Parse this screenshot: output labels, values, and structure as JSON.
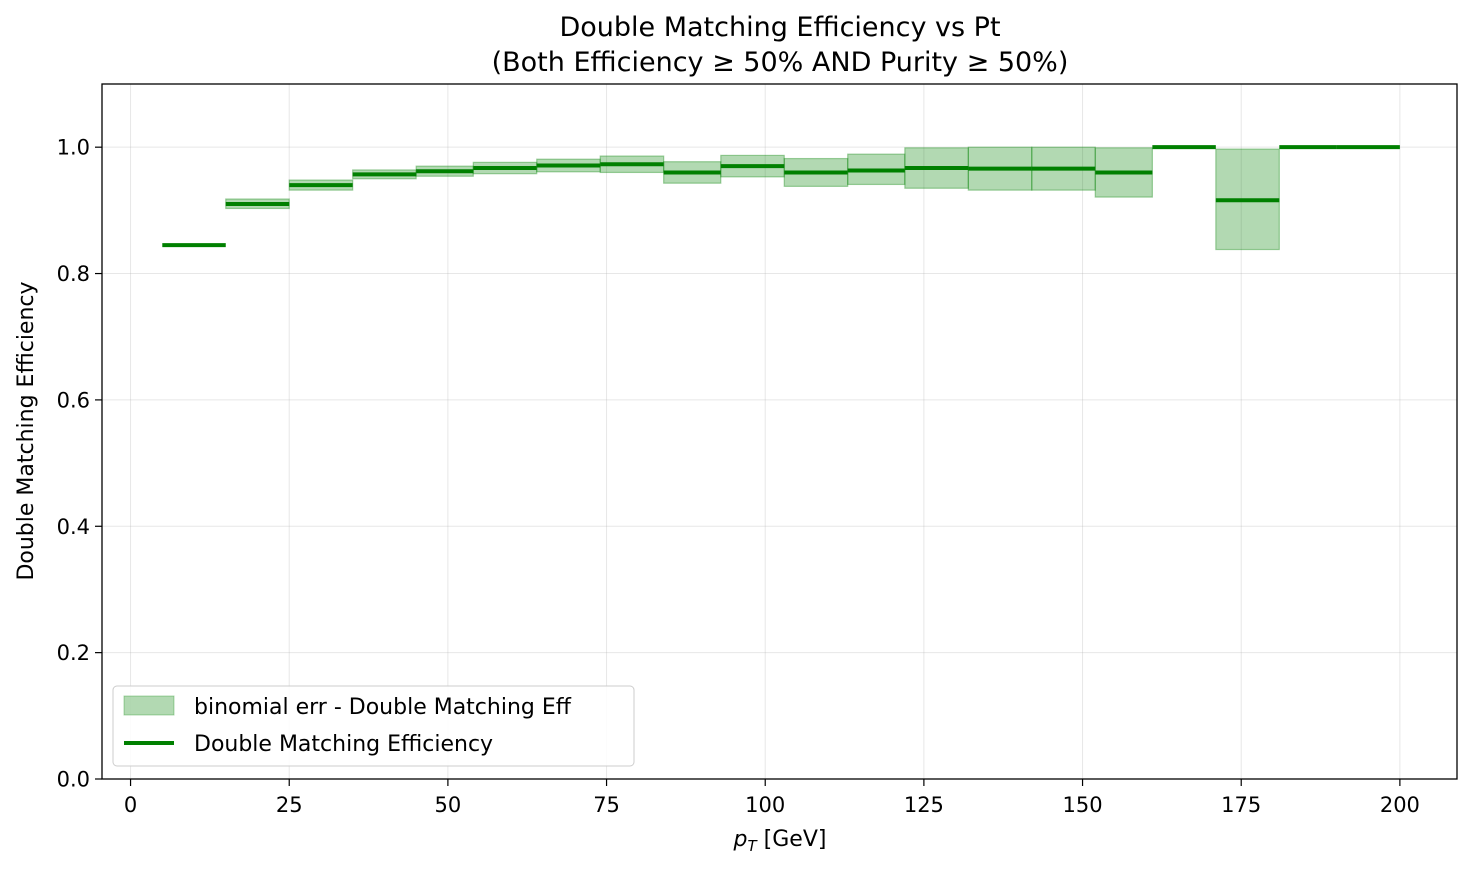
{
  "chart_data": {
    "type": "step",
    "title_lines": [
      "Double Matching Efficiency vs Pt",
      "(Both Efficiency ≥ 50% AND Purity ≥ 50%)"
    ],
    "xlabel_italic": "p",
    "xlabel_sub": "T",
    "xlabel_rest": " [GeV]",
    "ylabel": "Double Matching Efficiency",
    "xlim": [
      -4.5,
      209
    ],
    "ylim": [
      0.0,
      1.1
    ],
    "xticks": [
      0,
      25,
      50,
      75,
      100,
      125,
      150,
      175,
      200
    ],
    "yticks": [
      0.0,
      0.2,
      0.4,
      0.6,
      0.8,
      1.0
    ],
    "ytick_labels": [
      "0.0",
      "0.2",
      "0.4",
      "0.6",
      "0.8",
      "1.0"
    ],
    "grid": true,
    "legend_position": "lower-left",
    "line_color": "#008000",
    "band_color": "#008000",
    "series": [
      {
        "name": "Double Matching Efficiency",
        "bins": [
          {
            "x0": 5,
            "x1": 15,
            "y": 0.845
          },
          {
            "x0": 15,
            "x1": 25,
            "y": 0.91
          },
          {
            "x0": 25,
            "x1": 35,
            "y": 0.94
          },
          {
            "x0": 35,
            "x1": 45,
            "y": 0.957
          },
          {
            "x0": 45,
            "x1": 54,
            "y": 0.962
          },
          {
            "x0": 54,
            "x1": 64,
            "y": 0.967
          },
          {
            "x0": 64,
            "x1": 74,
            "y": 0.971
          },
          {
            "x0": 74,
            "x1": 84,
            "y": 0.973
          },
          {
            "x0": 84,
            "x1": 93,
            "y": 0.96
          },
          {
            "x0": 93,
            "x1": 103,
            "y": 0.97
          },
          {
            "x0": 103,
            "x1": 113,
            "y": 0.96
          },
          {
            "x0": 113,
            "x1": 122,
            "y": 0.963
          },
          {
            "x0": 122,
            "x1": 132,
            "y": 0.967
          },
          {
            "x0": 132,
            "x1": 142,
            "y": 0.966
          },
          {
            "x0": 142,
            "x1": 152,
            "y": 0.966
          },
          {
            "x0": 152,
            "x1": 161,
            "y": 0.96
          },
          {
            "x0": 161,
            "x1": 171,
            "y": 1.0
          },
          {
            "x0": 171,
            "x1": 181,
            "y": 0.916
          },
          {
            "x0": 181,
            "x1": 190,
            "y": 1.0
          },
          {
            "x0": 190,
            "x1": 200,
            "y": 1.0
          }
        ]
      },
      {
        "name": "binomial err - Double Matching Eff",
        "bands": [
          {
            "x0": 15,
            "x1": 25,
            "lo": 0.903,
            "hi": 0.918
          },
          {
            "x0": 25,
            "x1": 35,
            "lo": 0.932,
            "hi": 0.948
          },
          {
            "x0": 35,
            "x1": 45,
            "lo": 0.95,
            "hi": 0.964
          },
          {
            "x0": 45,
            "x1": 54,
            "lo": 0.954,
            "hi": 0.97
          },
          {
            "x0": 54,
            "x1": 64,
            "lo": 0.958,
            "hi": 0.976
          },
          {
            "x0": 64,
            "x1": 74,
            "lo": 0.961,
            "hi": 0.981
          },
          {
            "x0": 74,
            "x1": 84,
            "lo": 0.96,
            "hi": 0.986
          },
          {
            "x0": 84,
            "x1": 93,
            "lo": 0.943,
            "hi": 0.977
          },
          {
            "x0": 93,
            "x1": 103,
            "lo": 0.953,
            "hi": 0.987
          },
          {
            "x0": 103,
            "x1": 113,
            "lo": 0.938,
            "hi": 0.982
          },
          {
            "x0": 113,
            "x1": 122,
            "lo": 0.941,
            "hi": 0.989
          },
          {
            "x0": 122,
            "x1": 132,
            "lo": 0.935,
            "hi": 0.999
          },
          {
            "x0": 132,
            "x1": 142,
            "lo": 0.932,
            "hi": 1.0
          },
          {
            "x0": 142,
            "x1": 152,
            "lo": 0.932,
            "hi": 1.0
          },
          {
            "x0": 152,
            "x1": 161,
            "lo": 0.921,
            "hi": 0.999
          },
          {
            "x0": 171,
            "x1": 181,
            "lo": 0.838,
            "hi": 0.997
          }
        ]
      }
    ]
  }
}
